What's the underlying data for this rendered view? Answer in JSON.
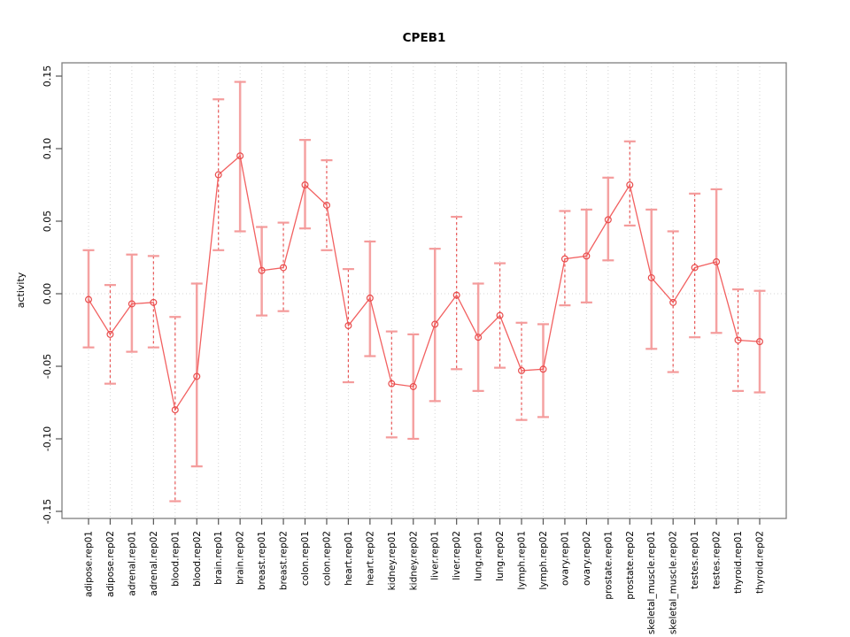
{
  "figure": {
    "background": "#ffffff"
  },
  "chart_data": {
    "type": "line",
    "subtype": "points-with-error-bars",
    "title": "CPEB1",
    "xlabel": "",
    "ylabel": "activity",
    "ylim": [
      -0.15,
      0.15
    ],
    "yticks": [
      -0.15,
      -0.1,
      -0.05,
      0.0,
      0.05,
      0.1,
      0.15
    ],
    "ytick_labels": [
      "-0.15",
      "-0.10",
      "-0.05",
      "0.00",
      "0.05",
      "0.10",
      "0.15"
    ],
    "grid": "vertical dotted gridline at every category; dotted horizontal line at y=0",
    "legend": "none",
    "categories": [
      "adipose.rep01",
      "adipose.rep02",
      "adrenal.rep01",
      "adrenal.rep02",
      "blood.rep01",
      "blood.rep02",
      "brain.rep01",
      "brain.rep02",
      "breast.rep01",
      "breast.rep02",
      "colon.rep01",
      "colon.rep02",
      "heart.rep01",
      "heart.rep02",
      "kidney.rep01",
      "kidney.rep02",
      "liver.rep01",
      "liver.rep02",
      "lung.rep01",
      "lung.rep02",
      "lymph.rep01",
      "lymph.rep02",
      "ovary.rep01",
      "ovary.rep02",
      "prostate.rep01",
      "prostate.rep02",
      "skeletal_muscle.rep01",
      "skeletal_muscle.rep02",
      "testes.rep01",
      "testes.rep02",
      "thyroid.rep01",
      "thyroid.rep02"
    ],
    "series": [
      {
        "name": "activity",
        "values": [
          -0.004,
          -0.028,
          -0.007,
          -0.006,
          -0.08,
          -0.057,
          0.082,
          0.095,
          0.016,
          0.018,
          0.075,
          0.061,
          -0.022,
          -0.003,
          -0.062,
          -0.064,
          -0.021,
          -0.001,
          -0.03,
          -0.015,
          -0.053,
          -0.052,
          0.024,
          0.026,
          0.051,
          0.075,
          0.011,
          -0.006,
          0.018,
          0.022,
          -0.032,
          -0.033
        ],
        "ci_upper": [
          0.03,
          0.006,
          0.027,
          0.026,
          -0.016,
          0.007,
          0.134,
          0.146,
          0.046,
          0.049,
          0.106,
          0.092,
          0.017,
          0.036,
          -0.026,
          -0.028,
          0.031,
          0.053,
          0.007,
          0.021,
          -0.02,
          -0.021,
          0.057,
          0.058,
          0.08,
          0.105,
          0.058,
          0.043,
          0.069,
          0.072,
          0.003,
          0.002
        ],
        "ci_lower": [
          -0.037,
          -0.062,
          -0.04,
          -0.037,
          -0.143,
          -0.119,
          0.03,
          0.043,
          -0.015,
          -0.012,
          0.045,
          0.03,
          -0.061,
          -0.043,
          -0.099,
          -0.1,
          -0.074,
          -0.052,
          -0.067,
          -0.051,
          -0.087,
          -0.085,
          -0.008,
          -0.006,
          0.023,
          0.047,
          -0.038,
          -0.054,
          -0.03,
          -0.027,
          -0.067,
          -0.068
        ],
        "error_bar_styles": [
          "solid",
          "dashed",
          "solid",
          "dashed",
          "dashed",
          "solid",
          "dashed",
          "solid",
          "solid",
          "dashed",
          "solid",
          "dashed",
          "dashed",
          "solid",
          "dashed",
          "solid",
          "solid",
          "dashed",
          "solid",
          "dashed",
          "dashed",
          "solid",
          "dashed",
          "solid",
          "solid",
          "dashed",
          "solid",
          "dashed",
          "dashed",
          "solid",
          "dashed",
          "solid"
        ]
      }
    ],
    "colors": {
      "point_stroke": "#e84c4c",
      "line": "#f26060",
      "errorbar_solid": "#f5a2a2",
      "errorbar_dashed": "#e85555",
      "errorbar_cap": "#f49b9b",
      "gridline": "#d4d4d4",
      "zero_line": "#d4d4d4",
      "box_border": "#7f7f7f",
      "tick": "#555555",
      "text": "#000000"
    }
  }
}
